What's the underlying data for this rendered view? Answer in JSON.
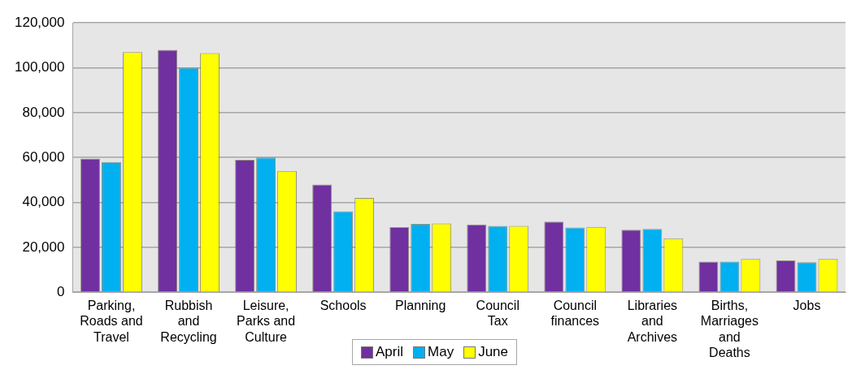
{
  "chart_data": {
    "type": "bar",
    "categories": [
      "Parking, Roads and Travel",
      "Rubbish and Recycling",
      "Leisure, Parks and Culture",
      "Schools",
      "Planning",
      "Council Tax",
      "Council finances",
      "Libraries and Archives",
      "Births, Marriages and Deaths",
      "Jobs"
    ],
    "series": [
      {
        "name": "April",
        "color": "#7030a0",
        "values": [
          59500,
          108000,
          59000,
          48000,
          29000,
          30200,
          31400,
          27800,
          13600,
          14200
        ]
      },
      {
        "name": "May",
        "color": "#00b0f0",
        "values": [
          58000,
          100000,
          60000,
          36000,
          30400,
          29500,
          28800,
          28200,
          13600,
          13400
        ]
      },
      {
        "name": "June",
        "color": "#ffff00",
        "values": [
          107000,
          106500,
          54000,
          42000,
          30600,
          29500,
          29100,
          24000,
          14800,
          14800
        ]
      }
    ],
    "ylim": [
      0,
      120000
    ],
    "yticks": [
      0,
      {
        "value": 20000,
        "label": "20,000"
      },
      {
        "value": 40000,
        "label": "40,000"
      },
      {
        "value": 60000,
        "label": "60,000"
      },
      {
        "value": 80000,
        "label": "80,000"
      },
      {
        "value": 100000,
        "label": "100,000"
      },
      {
        "value": 120000,
        "label": "120,000"
      }
    ],
    "grid": "y",
    "legend": "bottom"
  }
}
